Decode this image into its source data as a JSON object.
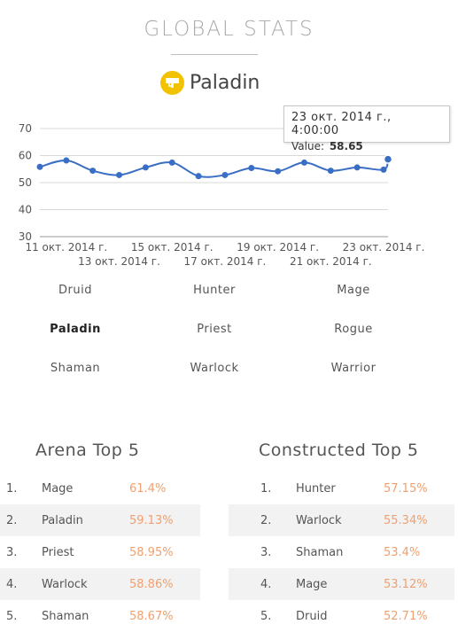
{
  "header": {
    "title": "GLOBAL STATS"
  },
  "class_header": {
    "name": "Paladin",
    "icon": "paladin-class-icon",
    "icon_color": "#f2c200"
  },
  "tooltip": {
    "date": "23 окт. 2014 г., 4:00:00",
    "value_label": "Value:",
    "value": "58.65"
  },
  "chart_data": {
    "type": "line",
    "title": "",
    "xlabel": "",
    "ylabel": "",
    "ylim": [
      30,
      70
    ],
    "yticks": [
      30,
      40,
      50,
      60,
      70
    ],
    "grid": true,
    "x": [
      "2014-10-10",
      "2014-10-11",
      "2014-10-12",
      "2014-10-13",
      "2014-10-14",
      "2014-10-15",
      "2014-10-16",
      "2014-10-17",
      "2014-10-18",
      "2014-10-19",
      "2014-10-20",
      "2014-10-21",
      "2014-10-22",
      "2014-10-23"
    ],
    "xtick_labels": [
      {
        "label": "11 окт. 2014 г.",
        "date": "2014-10-11"
      },
      {
        "label": "13 окт. 2014 г.",
        "date": "2014-10-13"
      },
      {
        "label": "15 окт. 2014 г.",
        "date": "2014-10-15"
      },
      {
        "label": "17 окт. 2014 г.",
        "date": "2014-10-17"
      },
      {
        "label": "19 окт. 2014 г.",
        "date": "2014-10-19"
      },
      {
        "label": "21 окт. 2014 г.",
        "date": "2014-10-21"
      },
      {
        "label": "23 окт. 2014 г.",
        "date": "2014-10-23"
      }
    ],
    "series": [
      {
        "values": [
          55.8,
          58.2,
          54.4,
          52.8,
          55.6,
          57.4,
          52.4,
          52.8,
          55.4,
          54.2,
          57.4,
          54.4,
          55.6,
          54.8,
          58.65
        ],
        "x": [
          "2014-10-10",
          "2014-10-11",
          "2014-10-12",
          "2014-10-13",
          "2014-10-14",
          "2014-10-15",
          "2014-10-16",
          "2014-10-17",
          "2014-10-18",
          "2014-10-19",
          "2014-10-20",
          "2014-10-21",
          "2014-10-22",
          "2014-10-23",
          "2014-10-23T04:00"
        ],
        "color": "#3a6ec4"
      }
    ]
  },
  "classes": [
    "Druid",
    "Hunter",
    "Mage",
    "Paladin",
    "Priest",
    "Rogue",
    "Shaman",
    "Warlock",
    "Warrior"
  ],
  "selected_class": "Paladin",
  "arena": {
    "title": "Arena Top 5",
    "rows": [
      {
        "rank": "1.",
        "name": "Mage",
        "pct": "61.4%"
      },
      {
        "rank": "2.",
        "name": "Paladin",
        "pct": "59.13%"
      },
      {
        "rank": "3.",
        "name": "Priest",
        "pct": "58.95%"
      },
      {
        "rank": "4.",
        "name": "Warlock",
        "pct": "58.86%"
      },
      {
        "rank": "5.",
        "name": "Shaman",
        "pct": "58.67%"
      }
    ]
  },
  "constructed": {
    "title": "Constructed Top 5",
    "rows": [
      {
        "rank": "1.",
        "name": "Hunter",
        "pct": "57.15%"
      },
      {
        "rank": "2.",
        "name": "Warlock",
        "pct": "55.34%"
      },
      {
        "rank": "3.",
        "name": "Shaman",
        "pct": "53.4%"
      },
      {
        "rank": "4.",
        "name": "Mage",
        "pct": "53.12%"
      },
      {
        "rank": "5.",
        "name": "Druid",
        "pct": "52.71%"
      }
    ]
  },
  "colors": {
    "accent_pct": "#f0a070",
    "line": "#3a6ec4",
    "row_alt": "#f2f2f2"
  }
}
